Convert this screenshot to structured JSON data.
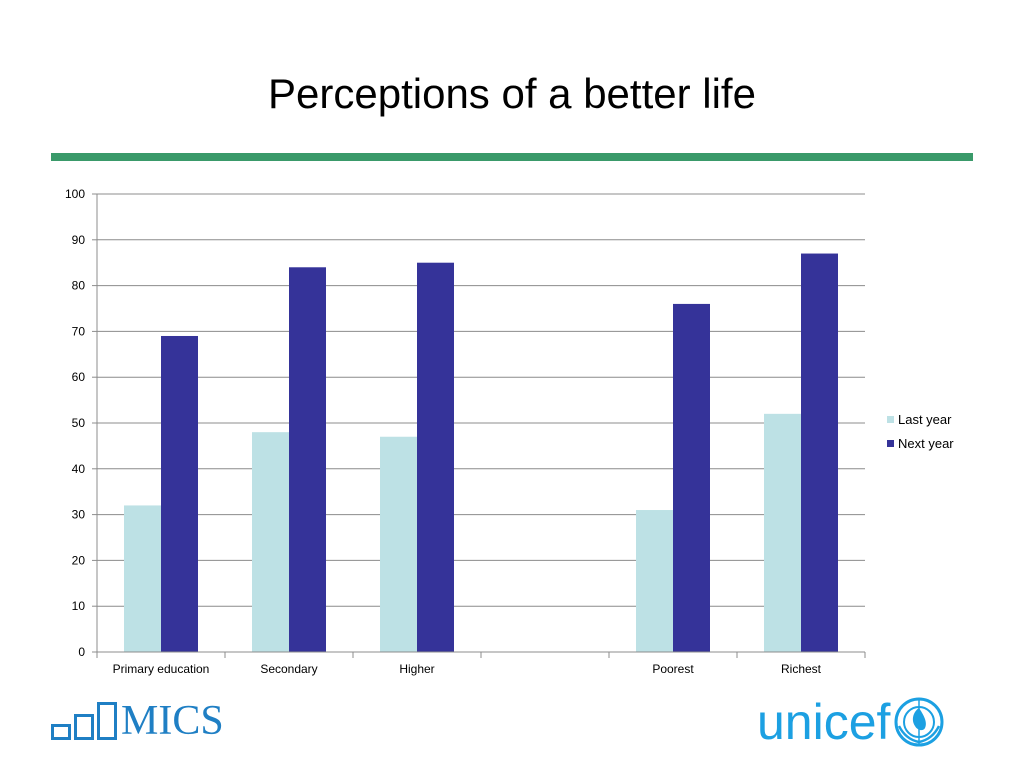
{
  "slide": {
    "title": "Perceptions of a better life",
    "accent_color": "#3a9a6a"
  },
  "logos": {
    "mics": {
      "text": "MICS",
      "color": "#1f7fc4",
      "icon": "bar-chart-icon"
    },
    "unicef": {
      "text": "unicef",
      "color": "#1ca0e2",
      "icon": "unicef-emblem-icon"
    }
  },
  "chart_data": {
    "type": "bar",
    "title": "",
    "xlabel": "",
    "ylabel": "",
    "categories": [
      "Primary education",
      "Secondary",
      "Higher",
      "",
      "Poorest",
      "Richest"
    ],
    "series": [
      {
        "name": "Last year",
        "values": [
          32,
          48,
          47,
          null,
          31,
          52
        ],
        "color": "#bde1e5"
      },
      {
        "name": "Next year",
        "values": [
          69,
          84,
          85,
          null,
          76,
          87
        ],
        "color": "#353399"
      }
    ],
    "ylim": [
      0,
      100
    ],
    "yticks": [
      0,
      10,
      20,
      30,
      40,
      50,
      60,
      70,
      80,
      90,
      100
    ],
    "grid": true,
    "legend": "right"
  }
}
